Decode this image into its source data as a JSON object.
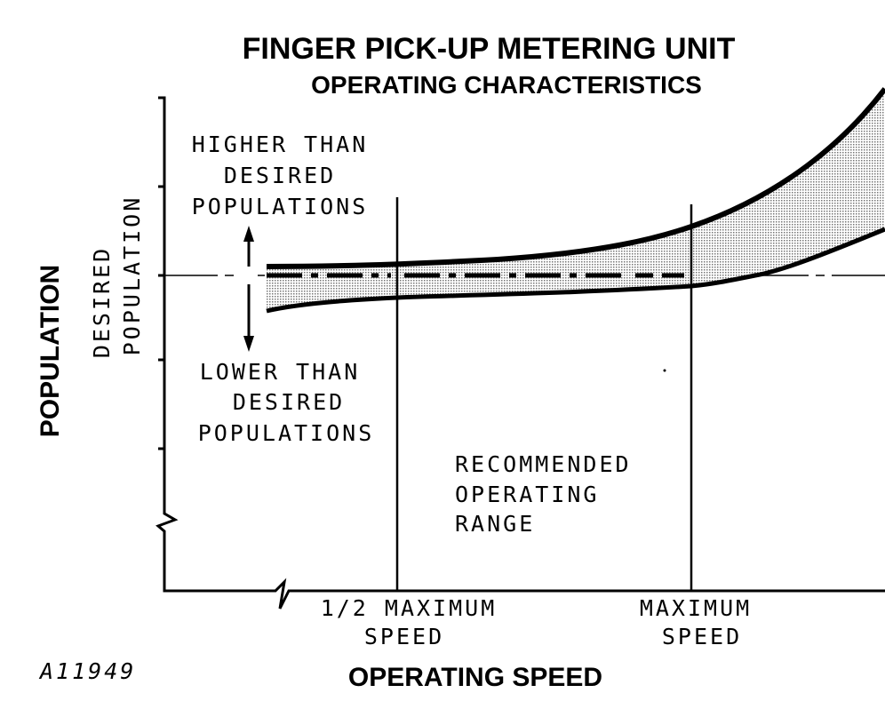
{
  "header": {
    "title": "FINGER PICK-UP METERING UNIT",
    "subtitle": "OPERATING CHARACTERISTICS"
  },
  "axes": {
    "y_label": "POPULATION",
    "x_label": "OPERATING SPEED",
    "x_markers": [
      {
        "lines": [
          "1/2 MAXIMUM",
          "SPEED"
        ]
      },
      {
        "lines": [
          "MAXIMUM",
          "SPEED"
        ]
      }
    ]
  },
  "reference": {
    "lines": [
      "DESIRED",
      "POPULATION"
    ]
  },
  "annotations": {
    "higher": [
      "HIGHER THAN",
      "DESIRED",
      "POPULATIONS"
    ],
    "lower": [
      "LOWER THAN",
      "DESIRED",
      "POPULATIONS"
    ],
    "range": [
      "RECOMMENDED",
      "OPERATING",
      "RANGE"
    ]
  },
  "figure_id": "A11949"
}
